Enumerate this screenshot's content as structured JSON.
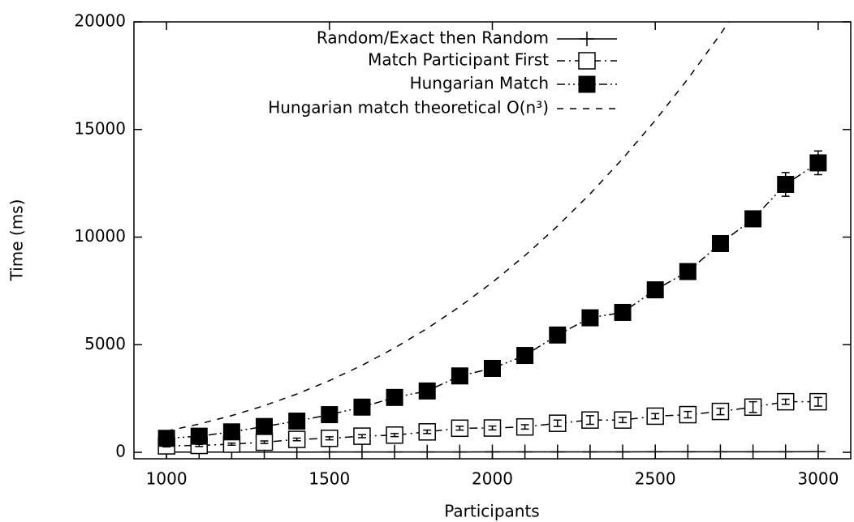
{
  "chart_data": {
    "type": "line",
    "xlabel": "Participants",
    "ylabel": "Time (ms)",
    "xlim": [
      900,
      3100
    ],
    "ylim": [
      -300,
      20000
    ],
    "xticks": [
      1000,
      1500,
      2000,
      2500,
      3000
    ],
    "yticks": [
      0,
      5000,
      10000,
      15000,
      20000
    ],
    "legend": "top-center",
    "series": [
      {
        "name": "Random/Exact then Random",
        "color": "#000000",
        "marker": "plus",
        "dash": "solid",
        "x": [
          1000,
          1100,
          1200,
          1300,
          1400,
          1500,
          1600,
          1700,
          1800,
          1900,
          2000,
          2100,
          2200,
          2300,
          2400,
          2500,
          2600,
          2700,
          2800,
          2900,
          3000
        ],
        "values": [
          10,
          10,
          10,
          12,
          12,
          14,
          14,
          15,
          16,
          17,
          18,
          19,
          20,
          21,
          22,
          23,
          24,
          25,
          26,
          27,
          28
        ]
      },
      {
        "name": "Match Participant First",
        "color": "#000000",
        "marker": "open-square",
        "dash": "dash-dot",
        "x": [
          1000,
          1100,
          1200,
          1300,
          1400,
          1500,
          1600,
          1700,
          1800,
          1900,
          2000,
          2100,
          2200,
          2300,
          2400,
          2500,
          2600,
          2700,
          2800,
          2900,
          3000
        ],
        "values": [
          300,
          320,
          380,
          470,
          600,
          650,
          750,
          800,
          950,
          1120,
          1130,
          1180,
          1350,
          1500,
          1500,
          1680,
          1750,
          1900,
          2100,
          2350,
          2350
        ],
        "errors": [
          50,
          50,
          50,
          60,
          60,
          70,
          70,
          70,
          80,
          90,
          90,
          100,
          150,
          200,
          120,
          120,
          150,
          150,
          250,
          120,
          200
        ]
      },
      {
        "name": "Hungarian Match",
        "color": "#000000",
        "marker": "filled-square",
        "dash": "dash-dot-dot",
        "x": [
          1000,
          1100,
          1200,
          1300,
          1400,
          1500,
          1600,
          1700,
          1800,
          1900,
          2000,
          2100,
          2200,
          2300,
          2400,
          2500,
          2600,
          2700,
          2800,
          2900,
          3000
        ],
        "values": [
          650,
          750,
          950,
          1200,
          1450,
          1750,
          2100,
          2550,
          2850,
          3550,
          3900,
          4500,
          5450,
          6250,
          6500,
          7550,
          8400,
          9700,
          10850,
          12450,
          13450
        ],
        "errors": [
          50,
          50,
          60,
          60,
          70,
          70,
          80,
          90,
          90,
          100,
          100,
          120,
          120,
          120,
          150,
          150,
          150,
          200,
          200,
          550,
          550
        ]
      },
      {
        "name": "Hungarian match theoretical O(n³)",
        "color": "#000000",
        "marker": "none",
        "dash": "dashed",
        "x": [
          1000,
          1100,
          1200,
          1300,
          1400,
          1500,
          1600,
          1700,
          1800,
          1900,
          2000,
          2100,
          2200,
          2300,
          2400,
          2500,
          2600,
          2700,
          2800
        ],
        "values": [
          987,
          1314,
          1706,
          2168,
          2708,
          3331,
          4043,
          4849,
          5756,
          6770,
          7896,
          9141,
          10510,
          12009,
          13645,
          15422,
          17348,
          19428,
          21668
        ]
      }
    ]
  }
}
